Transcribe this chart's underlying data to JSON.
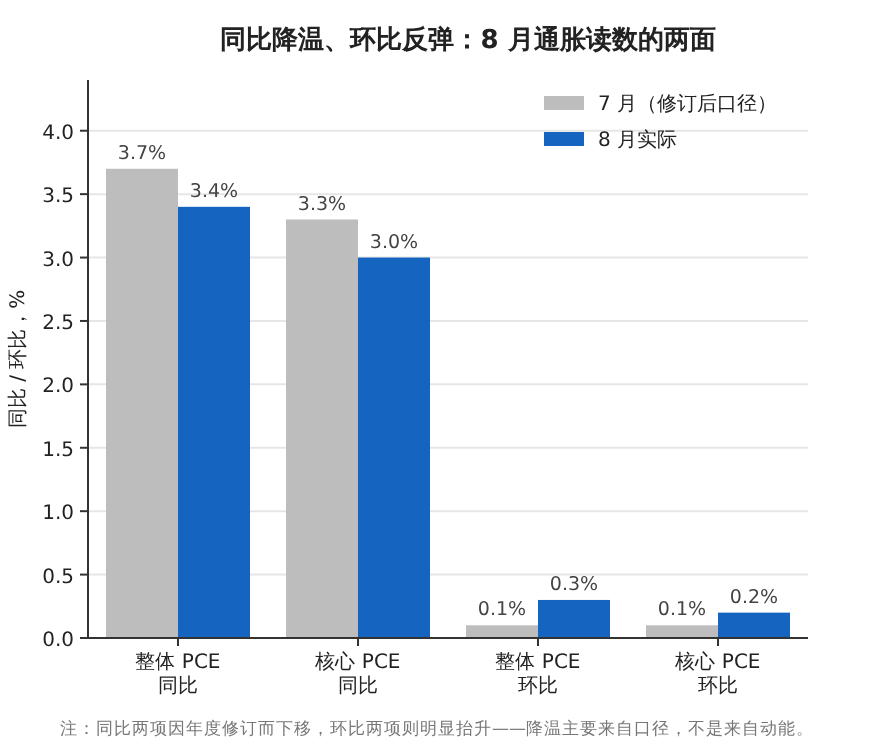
{
  "chart_data": {
    "type": "bar",
    "title": "同比降温、环比反弹：8 月通胀读数的两面",
    "ylabel": "同比 / 环比，%",
    "categories": [
      "整体 PCE\n同比",
      "核心 PCE\n同比",
      "整体 PCE\n环比",
      "核心 PCE\n环比"
    ],
    "series": [
      {
        "name": "7 月（修订后口径）",
        "color": "#bdbdbd",
        "values": [
          3.7,
          3.3,
          0.1,
          0.1
        ],
        "value_labels": [
          "3.7%",
          "3.3%",
          "0.1%",
          "0.1%"
        ]
      },
      {
        "name": "8 月实际",
        "color": "#1565c0",
        "values": [
          3.4,
          3.0,
          0.3,
          0.2
        ],
        "value_labels": [
          "3.4%",
          "3.0%",
          "0.3%",
          "0.2%"
        ]
      }
    ],
    "ylim": [
      0,
      4.4
    ],
    "yticks": [
      {
        "value": 0,
        "label": "0.0"
      },
      0.5,
      {
        "value": 1,
        "label": "1.0"
      },
      1.5,
      {
        "value": 2,
        "label": "2.0"
      },
      2.5,
      {
        "value": 3,
        "label": "3.0"
      },
      3.5,
      {
        "value": 4,
        "label": "4.0"
      }
    ],
    "grid": "y",
    "legend": "top right",
    "annotations": [
      "注：同比两项因年度修订而下移，环比两项则明显抬升——降温主要来自口径，不是来自动能。"
    ]
  }
}
